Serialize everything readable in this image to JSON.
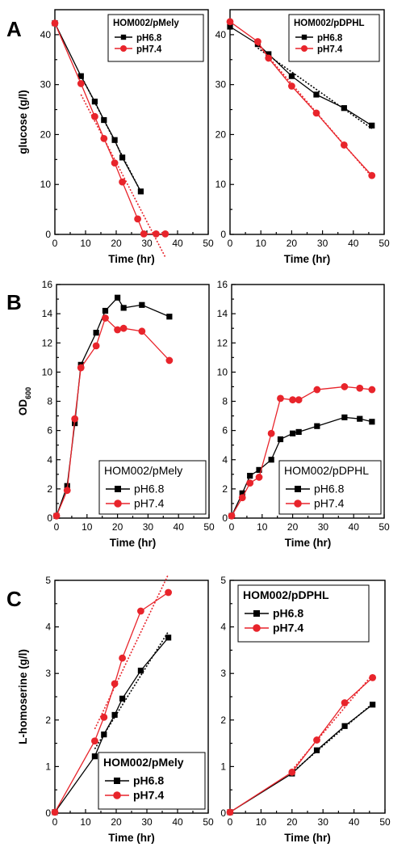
{
  "figure": {
    "panel_letters": [
      "A",
      "B",
      "C"
    ]
  },
  "chart_data": [
    {
      "type": "line",
      "panel": "A",
      "xlabel": "Time (hr)",
      "ylabel": "glucose (g/l)",
      "xlim": [
        0,
        50
      ],
      "ylim": [
        0,
        45
      ],
      "xticks": [
        0,
        10,
        20,
        30,
        40,
        50
      ],
      "yticks": [
        0,
        10,
        20,
        30,
        40
      ],
      "legend_title": "HOM002/pMely",
      "legend_bold": true,
      "legend_position": "top-right",
      "series": [
        {
          "name": "pH6.8",
          "color": "#000000",
          "marker": "square",
          "fit": true,
          "x": [
            0,
            8.5,
            13,
            16,
            19.5,
            22,
            28
          ],
          "y": [
            42.3,
            31.7,
            26.6,
            22.9,
            18.9,
            15.4,
            8.6
          ]
        },
        {
          "name": "pH7.4",
          "color": "#e8242b",
          "marker": "circle",
          "fit": true,
          "x": [
            0,
            8.5,
            13,
            16,
            19.5,
            22,
            27,
            29,
            33,
            36
          ],
          "y": [
            42.3,
            30.2,
            23.6,
            19.2,
            14.3,
            10.5,
            3.1,
            0.1,
            0.1,
            0.1
          ]
        }
      ]
    },
    {
      "type": "line",
      "panel": "A",
      "xlabel": "Time (hr)",
      "ylabel": "",
      "xlim": [
        0,
        50
      ],
      "ylim": [
        0,
        45
      ],
      "xticks": [
        0,
        10,
        20,
        30,
        40,
        50
      ],
      "yticks": [
        0,
        10,
        20,
        30,
        40
      ],
      "legend_title": "HOM002/pDPHL",
      "legend_bold": true,
      "legend_position": "top-right",
      "series": [
        {
          "name": "pH6.8",
          "color": "#000000",
          "marker": "square",
          "fit": true,
          "x": [
            0,
            9,
            12.5,
            20,
            28,
            37,
            46
          ],
          "y": [
            41.6,
            38.1,
            36.1,
            31.7,
            28.0,
            25.3,
            21.8
          ]
        },
        {
          "name": "pH7.4",
          "color": "#e8242b",
          "marker": "circle",
          "fit": true,
          "x": [
            0,
            9,
            12.5,
            20,
            28,
            37,
            46
          ],
          "y": [
            42.6,
            38.6,
            35.3,
            29.7,
            24.3,
            17.9,
            11.8
          ]
        }
      ]
    },
    {
      "type": "line",
      "panel": "B",
      "xlabel": "Time (hr)",
      "ylabel": "OD600",
      "xlim": [
        0,
        50
      ],
      "ylim": [
        0,
        16
      ],
      "xticks": [
        0,
        10,
        20,
        30,
        40,
        50
      ],
      "yticks": [
        0,
        2,
        4,
        6,
        8,
        10,
        12,
        14,
        16
      ],
      "legend_title": "HOM002/pMely",
      "legend_bold": false,
      "legend_position": "bottom-right",
      "series": [
        {
          "name": "pH6.8",
          "color": "#000000",
          "marker": "square",
          "fit": false,
          "x": [
            0,
            3.5,
            6,
            8,
            13,
            16,
            20,
            22,
            28,
            37
          ],
          "y": [
            0.15,
            2.2,
            6.5,
            10.5,
            12.7,
            14.2,
            15.1,
            14.4,
            14.6,
            13.8
          ]
        },
        {
          "name": "pH7.4",
          "color": "#e8242b",
          "marker": "circle",
          "fit": false,
          "x": [
            0,
            3.5,
            6,
            8,
            13,
            16,
            20,
            22,
            28,
            37
          ],
          "y": [
            0.15,
            1.9,
            6.8,
            10.3,
            11.8,
            13.7,
            12.9,
            13.0,
            12.8,
            10.8
          ]
        }
      ]
    },
    {
      "type": "line",
      "panel": "B",
      "xlabel": "Time (hr)",
      "ylabel": "",
      "xlim": [
        0,
        50
      ],
      "ylim": [
        0,
        16
      ],
      "xticks": [
        0,
        10,
        20,
        30,
        40,
        50
      ],
      "yticks": [
        0,
        2,
        4,
        6,
        8,
        10,
        12,
        14,
        16
      ],
      "legend_title": "HOM002/pDPHL",
      "legend_bold": false,
      "legend_position": "bottom-right",
      "series": [
        {
          "name": "pH6.8",
          "color": "#000000",
          "marker": "square",
          "fit": false,
          "x": [
            0,
            3.5,
            6,
            9,
            13,
            16,
            20,
            22,
            28,
            37,
            42,
            46
          ],
          "y": [
            0.15,
            1.7,
            2.9,
            3.3,
            4.0,
            5.4,
            5.8,
            5.9,
            6.3,
            6.9,
            6.8,
            6.6
          ]
        },
        {
          "name": "pH7.4",
          "color": "#e8242b",
          "marker": "circle",
          "fit": false,
          "x": [
            0,
            3.5,
            6,
            9,
            13,
            16,
            20,
            22,
            28,
            37,
            42,
            46
          ],
          "y": [
            0.15,
            1.4,
            2.4,
            2.8,
            5.8,
            8.2,
            8.1,
            8.1,
            8.8,
            9.0,
            8.9,
            8.8
          ]
        }
      ]
    },
    {
      "type": "line",
      "panel": "C",
      "xlabel": "Time (hr)",
      "ylabel": "L-homoserine (g/l)",
      "xlim": [
        0,
        50
      ],
      "ylim": [
        0,
        5
      ],
      "xticks": [
        0,
        10,
        20,
        30,
        40,
        50
      ],
      "yticks": [
        0,
        1,
        2,
        3,
        4,
        5
      ],
      "legend_title": "HOM002/pMely",
      "legend_bold": true,
      "legend_position": "bottom-right",
      "series": [
        {
          "name": "pH6.8",
          "color": "#000000",
          "marker": "square",
          "fit": true,
          "x": [
            0,
            13,
            16,
            19.5,
            22,
            28,
            37
          ],
          "y": [
            0.02,
            1.22,
            1.69,
            2.11,
            2.46,
            3.06,
            3.77
          ]
        },
        {
          "name": "pH7.4",
          "color": "#e8242b",
          "marker": "circle",
          "fit": true,
          "x": [
            0,
            13,
            16,
            19.5,
            22,
            28,
            37
          ],
          "y": [
            0.02,
            1.55,
            2.06,
            2.78,
            3.33,
            4.34,
            4.74
          ]
        }
      ]
    },
    {
      "type": "line",
      "panel": "C",
      "xlabel": "Time (hr)",
      "ylabel": "",
      "xlim": [
        0,
        50
      ],
      "ylim": [
        0,
        5
      ],
      "xticks": [
        0,
        10,
        20,
        30,
        40,
        50
      ],
      "yticks": [
        0,
        1,
        2,
        3,
        4,
        5
      ],
      "legend_title": "HOM002/pDPHL",
      "legend_bold": true,
      "legend_position": "top-left",
      "series": [
        {
          "name": "pH6.8",
          "color": "#000000",
          "marker": "square",
          "fit": true,
          "x": [
            0,
            20,
            28,
            37,
            46
          ],
          "y": [
            0.02,
            0.85,
            1.35,
            1.87,
            2.33
          ]
        },
        {
          "name": "pH7.4",
          "color": "#e8242b",
          "marker": "circle",
          "fit": true,
          "x": [
            0,
            20,
            28,
            37,
            46
          ],
          "y": [
            0.02,
            0.88,
            1.57,
            2.37,
            2.91
          ]
        }
      ]
    }
  ]
}
